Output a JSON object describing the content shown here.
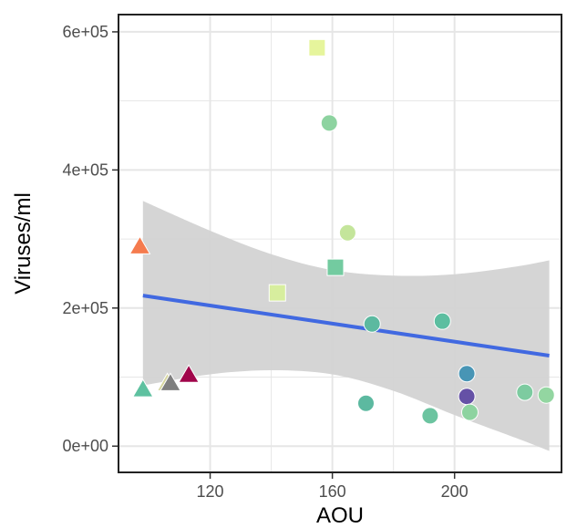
{
  "chart_data": {
    "type": "scatter",
    "title": "",
    "xlabel": "AOU",
    "ylabel": "Viruses/ml",
    "xlim": [
      90,
      235
    ],
    "ylim": [
      -38000,
      625000
    ],
    "x_ticks": [
      120,
      160,
      200
    ],
    "x_tick_labels": [
      "120",
      "160",
      "200"
    ],
    "y_ticks": [
      0,
      200000,
      400000,
      600000
    ],
    "y_tick_labels": [
      "0e+00",
      "2e+05",
      "4e+05",
      "6e+05"
    ],
    "grid": true,
    "legend": "none",
    "colors": {
      "regression_line": "#4169E1",
      "confidence_band": "#D3D3D3",
      "panel_border": "#222222",
      "grid": "#E6E6E6"
    },
    "regression": {
      "x_range": [
        98,
        231
      ],
      "y_start": 218000,
      "y_end": 131000,
      "band": [
        {
          "x": 98,
          "lower": 88000,
          "upper": 355000
        },
        {
          "x": 120,
          "lower": 104000,
          "upper": 312000
        },
        {
          "x": 140,
          "lower": 110000,
          "upper": 278000
        },
        {
          "x": 160,
          "lower": 104000,
          "upper": 255000
        },
        {
          "x": 180,
          "lower": 80000,
          "upper": 247000
        },
        {
          "x": 200,
          "lower": 45000,
          "upper": 249000
        },
        {
          "x": 220,
          "lower": 12000,
          "upper": 260000
        },
        {
          "x": 231,
          "lower": -7000,
          "upper": 269000
        }
      ]
    },
    "points": [
      {
        "x": 155,
        "y": 577000,
        "shape": "square",
        "color": "#E6F59C"
      },
      {
        "x": 159,
        "y": 468000,
        "shape": "circle",
        "color": "#8DD3A0"
      },
      {
        "x": 165,
        "y": 309000,
        "shape": "circle",
        "color": "#C4E59B"
      },
      {
        "x": 161,
        "y": 259000,
        "shape": "square",
        "color": "#73CBA0"
      },
      {
        "x": 142,
        "y": 222000,
        "shape": "square",
        "color": "#D7EE9E"
      },
      {
        "x": 173,
        "y": 177000,
        "shape": "circle",
        "color": "#5CB9A0"
      },
      {
        "x": 196,
        "y": 181000,
        "shape": "circle",
        "color": "#5CBEA0"
      },
      {
        "x": 204,
        "y": 105000,
        "shape": "circle",
        "color": "#4895B5"
      },
      {
        "x": 204,
        "y": 72000,
        "shape": "circle",
        "color": "#6551A6"
      },
      {
        "x": 205,
        "y": 49000,
        "shape": "circle",
        "color": "#8DD3A0"
      },
      {
        "x": 171,
        "y": 62000,
        "shape": "circle",
        "color": "#5CB9A0"
      },
      {
        "x": 192,
        "y": 44000,
        "shape": "circle",
        "color": "#6CC4A0"
      },
      {
        "x": 223,
        "y": 78000,
        "shape": "circle",
        "color": "#7DCBA0"
      },
      {
        "x": 230,
        "y": 74000,
        "shape": "circle",
        "color": "#93D6A1"
      },
      {
        "x": 97,
        "y": 289000,
        "shape": "triangle",
        "color": "#F57B4E"
      },
      {
        "x": 98,
        "y": 82000,
        "shape": "triangle",
        "color": "#5EC1A0"
      },
      {
        "x": 106,
        "y": 91000,
        "shape": "triangle",
        "color": "#D6D69E"
      },
      {
        "x": 107,
        "y": 91000,
        "shape": "triangle",
        "color": "#7F7F7F"
      },
      {
        "x": 113,
        "y": 103000,
        "shape": "triangle",
        "color": "#A0044A"
      }
    ]
  }
}
